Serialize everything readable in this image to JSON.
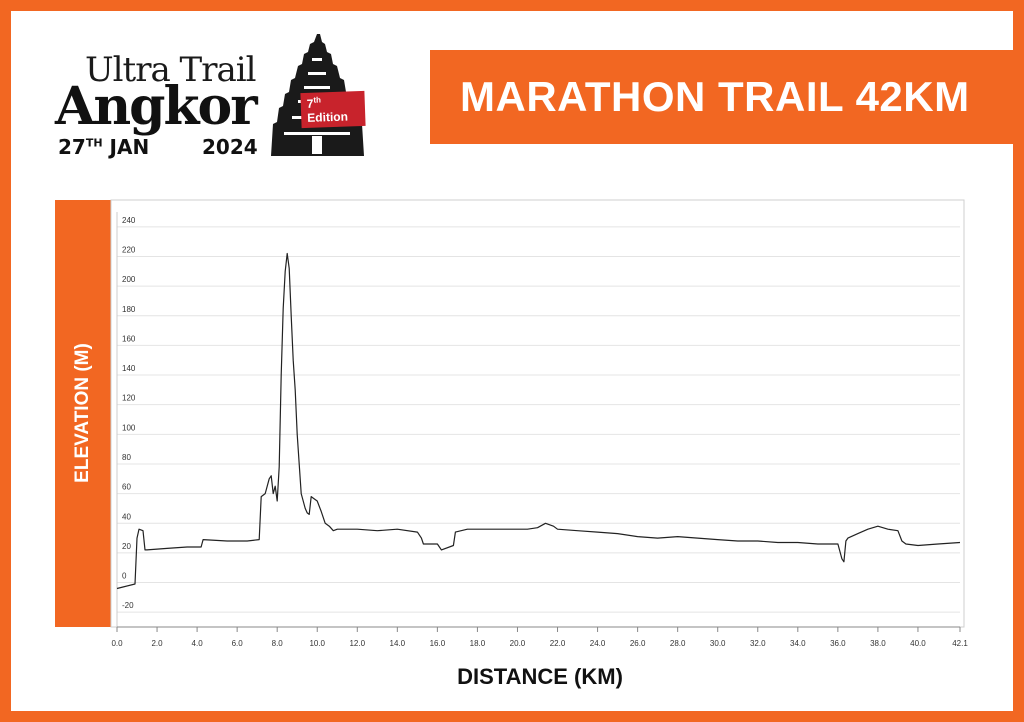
{
  "logo": {
    "line1": "Ultra Trail",
    "line2": "Angkor",
    "badge_num": "7",
    "badge_sup": "th",
    "badge_rest": " Edition",
    "date_day": "27",
    "date_sup": "TH",
    "date_month": " JAN",
    "year": "2024"
  },
  "banner": {
    "title": "MARATHON TRAIL 42KM"
  },
  "colors": {
    "accent": "#f26722",
    "line": "#222222",
    "grid": "#e4e4e4",
    "badge": "#c8232c"
  },
  "chart_data": {
    "type": "line",
    "title": "",
    "xlabel": "DISTANCE (KM)",
    "ylabel": "ELEVATION (M)",
    "xlim": [
      0,
      42.1
    ],
    "ylim": [
      -30,
      250
    ],
    "grid": true,
    "y_ticks": [
      "240",
      "220",
      "200",
      "180",
      "160",
      "140",
      "120",
      "100",
      "80",
      "60",
      "40",
      "20",
      "0",
      "-20"
    ],
    "y_tick_values": [
      240,
      220,
      200,
      180,
      160,
      140,
      120,
      100,
      80,
      60,
      40,
      20,
      0,
      -20
    ],
    "x_ticks": [
      "0.0",
      "2.0",
      "4.0",
      "6.0",
      "8.0",
      "10.0",
      "12.0",
      "14.0",
      "16.0",
      "18.0",
      "20.0",
      "22.0",
      "24.0",
      "26.0",
      "28.0",
      "30.0",
      "32.0",
      "34.0",
      "36.0",
      "38.0",
      "40.0",
      "42.1"
    ],
    "x_tick_values": [
      0,
      2,
      4,
      6,
      8,
      10,
      12,
      14,
      16,
      18,
      20,
      22,
      24,
      26,
      28,
      30,
      32,
      34,
      36,
      38,
      40,
      42.1
    ],
    "series": [
      {
        "x": [
          0,
          0.3,
          0.9,
          1.0,
          1.1,
          1.3,
          1.4,
          1.5,
          2.5,
          3.5,
          4.2,
          4.3,
          5.5,
          6.5,
          7.1,
          7.2,
          7.4,
          7.6,
          7.7,
          7.8,
          7.9,
          8.0,
          8.1,
          8.2,
          8.3,
          8.4,
          8.5,
          8.6,
          8.7,
          8.8,
          8.9,
          9.0,
          9.1,
          9.2,
          9.3,
          9.4,
          9.5,
          9.6,
          9.7,
          9.8,
          10.0,
          10.2,
          10.4,
          10.6,
          10.8,
          11.0,
          12.0,
          13.0,
          14.0,
          15.0,
          15.2,
          15.3,
          16.0,
          16.2,
          16.8,
          16.9,
          17.5,
          18.5,
          19.5,
          20.5,
          21.0,
          21.4,
          21.8,
          22.0,
          23.0,
          24.0,
          25.0,
          26.0,
          27.0,
          28.0,
          29.0,
          30.0,
          31.0,
          32.0,
          33.0,
          34.0,
          35.0,
          36.0,
          36.2,
          36.3,
          36.4,
          36.5,
          37.0,
          37.5,
          38.0,
          38.5,
          39.0,
          39.2,
          39.4,
          40.0,
          41.0,
          42.1
        ],
        "y": [
          -4,
          -3,
          -1,
          30,
          36,
          35,
          22,
          22,
          23,
          24,
          24,
          29,
          28,
          28,
          29,
          58,
          60,
          70,
          72,
          60,
          65,
          55,
          78,
          140,
          185,
          210,
          222,
          212,
          180,
          150,
          130,
          100,
          80,
          60,
          55,
          50,
          47,
          46,
          58,
          57,
          55,
          48,
          40,
          38,
          35,
          36,
          36,
          35,
          36,
          34,
          30,
          26,
          26,
          22,
          25,
          34,
          36,
          36,
          36,
          36,
          37,
          40,
          38,
          36,
          35,
          34,
          33,
          31,
          30,
          31,
          30,
          29,
          28,
          28,
          27,
          27,
          26,
          26,
          16,
          14,
          28,
          30,
          33,
          36,
          38,
          36,
          35,
          28,
          26,
          25,
          26,
          27
        ]
      }
    ]
  }
}
